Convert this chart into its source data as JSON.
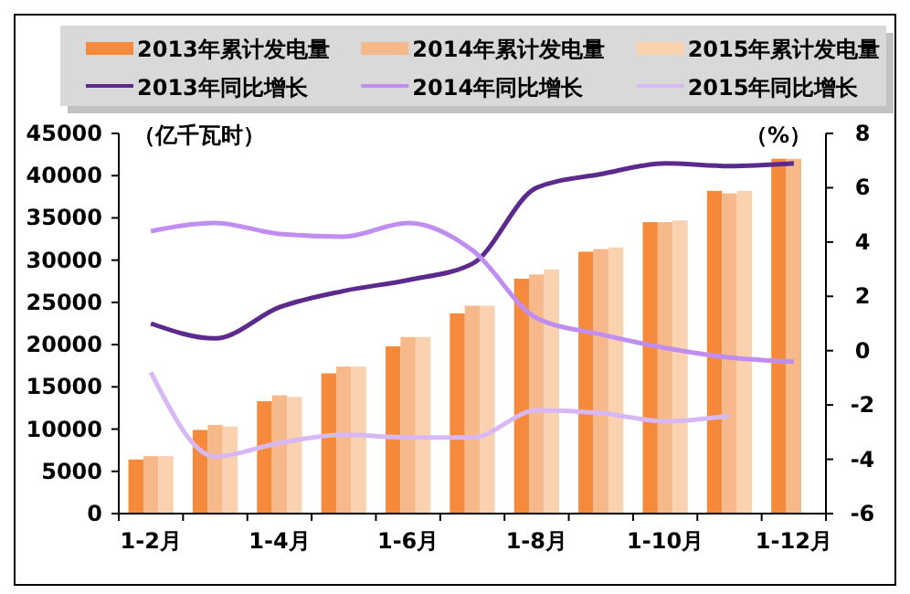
{
  "chart_data": {
    "type": "bar",
    "ylabel": "（亿千瓦时）",
    "y2label": "（%）",
    "categories": [
      "1-2月",
      null,
      "1-4月",
      null,
      "1-6月",
      null,
      "1-8月",
      null,
      "1-10月",
      null,
      "1-12月"
    ],
    "series": [
      {
        "name": "2013年累计发电量",
        "color": "#f58a3c",
        "values": [
          6400,
          9900,
          13300,
          16600,
          19800,
          23700,
          27800,
          31000,
          34500,
          38200,
          42000
        ]
      },
      {
        "name": "2014年累计发电量",
        "color": "#f8b98a",
        "values": [
          6800,
          10500,
          14000,
          17400,
          20900,
          24600,
          28300,
          31300,
          34500,
          37900,
          42000
        ]
      },
      {
        "name": "2015年累计发电量",
        "color": "#fbd2b0",
        "values": [
          6800,
          10300,
          13800,
          17400,
          20900,
          24600,
          28900,
          31500,
          34700,
          38200,
          null
        ]
      },
      {
        "name": "2013年同比增长",
        "type": "line",
        "axis": "y2",
        "color": "#5b2a8c",
        "values": [
          1.0,
          0.45,
          1.6,
          2.2,
          2.6,
          3.2,
          6.0,
          6.5,
          6.9,
          6.8,
          6.9
        ]
      },
      {
        "name": "2014年同比增长",
        "type": "line",
        "axis": "y2",
        "color": "#c08ef0",
        "values": [
          4.4,
          4.7,
          4.3,
          4.2,
          4.7,
          3.7,
          1.2,
          0.6,
          0.1,
          -0.25,
          -0.4
        ]
      },
      {
        "name": "2015年同比增长",
        "type": "line",
        "axis": "y2",
        "color": "#d8b8f4",
        "values": [
          -0.8,
          -3.9,
          -3.4,
          -3.1,
          -3.2,
          -3.2,
          -2.2,
          -2.3,
          -2.6,
          -2.4,
          null
        ]
      }
    ],
    "ylim": [
      0,
      45000
    ],
    "yticks": [
      0,
      5000,
      10000,
      15000,
      20000,
      25000,
      30000,
      35000,
      40000,
      45000
    ],
    "y2lim": [
      -6,
      8
    ],
    "y2ticks": [
      -6,
      -4,
      -2,
      0,
      2,
      4,
      6,
      8
    ],
    "legend": "top",
    "grid": false,
    "marker": "none",
    "line_style": "solid"
  }
}
